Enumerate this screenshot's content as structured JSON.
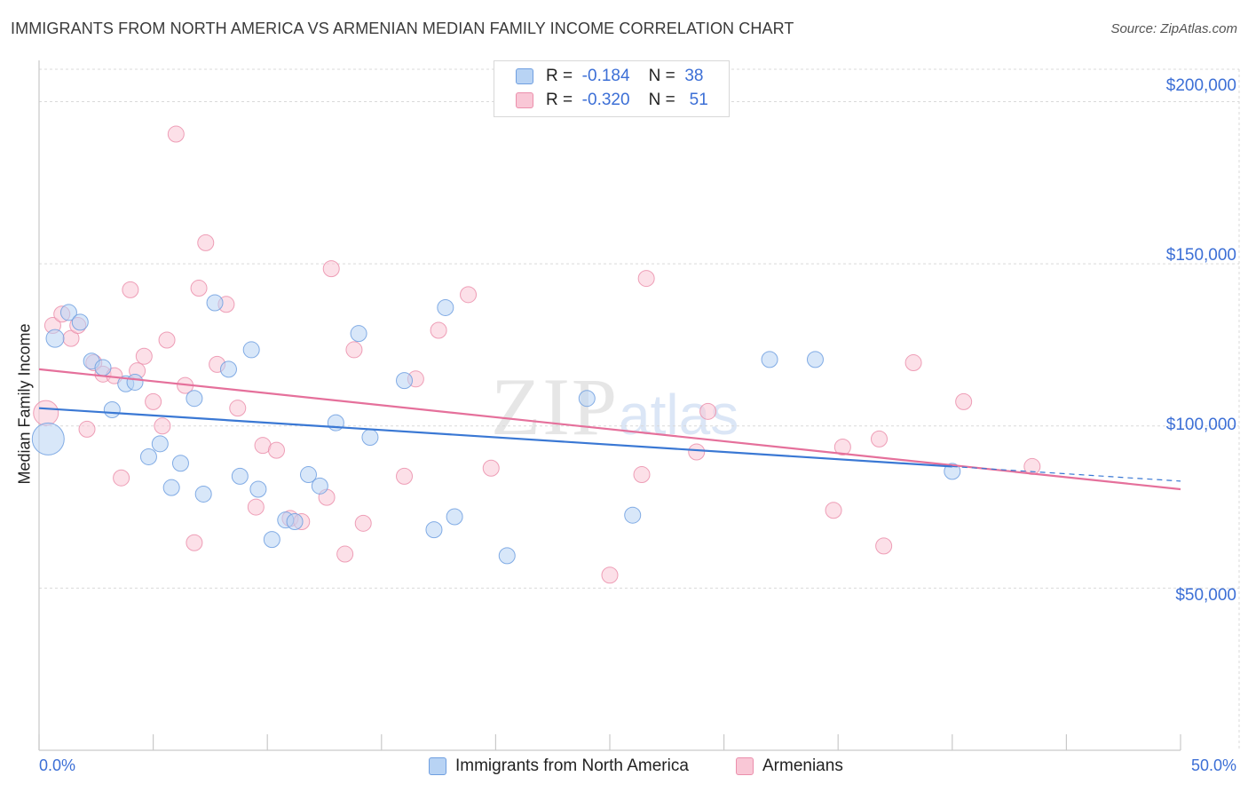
{
  "header": {
    "title": "IMMIGRANTS FROM NORTH AMERICA VS ARMENIAN MEDIAN FAMILY INCOME CORRELATION CHART",
    "source": "Source: ZipAtlas.com"
  },
  "watermark": {
    "zip": "ZIP",
    "atlas": "atlas"
  },
  "legend": {
    "rows": [
      {
        "r_label": "R =",
        "r_value": "-0.184",
        "n_label": "N =",
        "n_value": "38"
      },
      {
        "r_label": "R =",
        "r_value": "-0.320",
        "n_label": "N =",
        "n_value": "51"
      }
    ]
  },
  "colors": {
    "blue_fill": "#b8d3f4",
    "blue_stroke": "#6f9fe0",
    "blue_line": "#3a78d4",
    "pink_fill": "#f9c7d6",
    "pink_stroke": "#eb8fac",
    "pink_line": "#e5709b",
    "grid": "#d9d9d9",
    "axis_text": "#3c6fd6"
  },
  "chart_data": {
    "type": "scatter",
    "title": "IMMIGRANTS FROM NORTH AMERICA VS ARMENIAN MEDIAN FAMILY INCOME CORRELATION CHART",
    "xlabel": "",
    "ylabel": "Median Family Income",
    "xlim": [
      0,
      50
    ],
    "ylim": [
      0,
      210000
    ],
    "x_tick_labels": [
      "0.0%",
      "50.0%"
    ],
    "y_ticks": [
      50000,
      100000,
      150000,
      200000
    ],
    "y_tick_labels": [
      "$50,000",
      "$100,000",
      "$150,000",
      "$200,000"
    ],
    "grid": true,
    "legend_position": "top-center and bottom",
    "series": [
      {
        "name": "Immigrants from North America",
        "color": "#b8d3f4",
        "points": [
          [
            0.4,
            96000
          ],
          [
            0.7,
            127000
          ],
          [
            1.3,
            135000
          ],
          [
            1.8,
            132000
          ],
          [
            2.3,
            120000
          ],
          [
            2.8,
            118000
          ],
          [
            3.2,
            105000
          ],
          [
            3.8,
            113000
          ],
          [
            4.2,
            113500
          ],
          [
            4.8,
            90500
          ],
          [
            5.3,
            94500
          ],
          [
            5.8,
            81000
          ],
          [
            6.2,
            88500
          ],
          [
            6.8,
            108500
          ],
          [
            7.2,
            79000
          ],
          [
            7.7,
            138000
          ],
          [
            8.3,
            117500
          ],
          [
            8.8,
            84500
          ],
          [
            9.3,
            123500
          ],
          [
            9.6,
            80500
          ],
          [
            10.2,
            65000
          ],
          [
            10.8,
            71000
          ],
          [
            11.2,
            70500
          ],
          [
            11.8,
            85000
          ],
          [
            12.3,
            81500
          ],
          [
            13.0,
            101000
          ],
          [
            14.0,
            128500
          ],
          [
            14.5,
            96500
          ],
          [
            16.0,
            114000
          ],
          [
            17.3,
            68000
          ],
          [
            17.8,
            136500
          ],
          [
            18.2,
            72000
          ],
          [
            20.5,
            60000
          ],
          [
            24.0,
            108500
          ],
          [
            26.0,
            72500
          ],
          [
            32.0,
            120500
          ],
          [
            34.0,
            120500
          ],
          [
            40.0,
            86000
          ]
        ],
        "marker_sizes": [
          18,
          10,
          9,
          9,
          9,
          9,
          9,
          9,
          9,
          9,
          9,
          9,
          9,
          9,
          9,
          9,
          9,
          9,
          9,
          9,
          9,
          9,
          9,
          9,
          9,
          9,
          9,
          9,
          9,
          9,
          9,
          9,
          9,
          9,
          9,
          9,
          9,
          9
        ],
        "trend": {
          "x": [
            0,
            40
          ],
          "y": [
            105500,
            87500
          ]
        },
        "trend_extension": {
          "x": [
            40,
            50
          ],
          "y": [
            87500,
            83000
          ]
        }
      },
      {
        "name": "Armenians",
        "color": "#f9c7d6",
        "points": [
          [
            0.3,
            104000
          ],
          [
            0.6,
            131000
          ],
          [
            1.0,
            134500
          ],
          [
            1.4,
            127000
          ],
          [
            1.7,
            131000
          ],
          [
            2.1,
            99000
          ],
          [
            2.4,
            119500
          ],
          [
            2.8,
            116000
          ],
          [
            3.3,
            115500
          ],
          [
            3.6,
            84000
          ],
          [
            4.0,
            142000
          ],
          [
            4.3,
            117000
          ],
          [
            4.6,
            121500
          ],
          [
            5.0,
            107500
          ],
          [
            5.4,
            100000
          ],
          [
            5.6,
            126500
          ],
          [
            6.0,
            190000
          ],
          [
            6.4,
            112500
          ],
          [
            6.8,
            64000
          ],
          [
            7.0,
            142500
          ],
          [
            7.3,
            156500
          ],
          [
            7.8,
            119000
          ],
          [
            8.2,
            137500
          ],
          [
            8.7,
            105500
          ],
          [
            9.5,
            75000
          ],
          [
            9.8,
            94000
          ],
          [
            10.4,
            92500
          ],
          [
            11.0,
            71500
          ],
          [
            11.5,
            70500
          ],
          [
            12.6,
            78000
          ],
          [
            12.8,
            148500
          ],
          [
            13.4,
            60500
          ],
          [
            13.8,
            123500
          ],
          [
            14.2,
            70000
          ],
          [
            16.0,
            84500
          ],
          [
            16.5,
            114500
          ],
          [
            17.5,
            129500
          ],
          [
            18.8,
            140500
          ],
          [
            19.8,
            87000
          ],
          [
            25.0,
            54000
          ],
          [
            26.4,
            85000
          ],
          [
            26.6,
            145500
          ],
          [
            28.8,
            92000
          ],
          [
            29.3,
            104500
          ],
          [
            34.8,
            74000
          ],
          [
            35.2,
            93500
          ],
          [
            36.8,
            96000
          ],
          [
            37.0,
            63000
          ],
          [
            38.3,
            119500
          ],
          [
            40.5,
            107500
          ],
          [
            43.5,
            87500
          ]
        ],
        "marker_sizes": [
          14,
          9,
          9,
          9,
          9,
          9,
          9,
          9,
          9,
          9,
          9,
          9,
          9,
          9,
          9,
          9,
          9,
          9,
          9,
          9,
          9,
          9,
          9,
          9,
          9,
          9,
          9,
          9,
          9,
          9,
          9,
          9,
          9,
          9,
          9,
          9,
          9,
          9,
          9,
          9,
          9,
          9,
          9,
          9,
          9,
          9,
          9,
          9,
          9,
          9,
          9
        ],
        "trend": {
          "x": [
            0,
            50
          ],
          "y": [
            117500,
            80500
          ]
        }
      }
    ]
  }
}
